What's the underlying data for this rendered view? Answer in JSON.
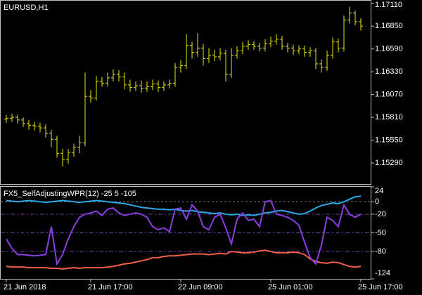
{
  "chart_data": [
    {
      "type": "ohlc",
      "title": "EURUSD,H1",
      "color": "#e8e800",
      "ylim": [
        1.1505,
        1.1714
      ],
      "yticks": [
        {
          "value": 1.1529,
          "label": "1.15290"
        },
        {
          "value": 1.1555,
          "label": "1.15550"
        },
        {
          "value": 1.1581,
          "label": "1.15810"
        },
        {
          "value": 1.1607,
          "label": "1.16070"
        },
        {
          "value": 1.1633,
          "label": "1.16330"
        },
        {
          "value": 1.1659,
          "label": "1.16590"
        },
        {
          "value": 1.1685,
          "label": "1.16850"
        },
        {
          "value": 1.1711,
          "label": "1.17110"
        }
      ],
      "open": [
        1.1579,
        1.158,
        1.1581,
        1.1578,
        1.1574,
        1.1572,
        1.1571,
        1.1569,
        1.1563,
        1.1556,
        1.154,
        1.1533,
        1.1541,
        1.1547,
        1.1552,
        1.1605,
        1.1603,
        1.1622,
        1.162,
        1.1626,
        1.163,
        1.1627,
        1.1618,
        1.1615,
        1.1617,
        1.1614,
        1.1616,
        1.1619,
        1.1615,
        1.1618,
        1.162,
        1.1638,
        1.164,
        1.1663,
        1.1655,
        1.166,
        1.1648,
        1.1652,
        1.165,
        1.1654,
        1.163,
        1.1652,
        1.1657,
        1.1662,
        1.1664,
        1.1662,
        1.166,
        1.1665,
        1.1668,
        1.167,
        1.1662,
        1.166,
        1.1657,
        1.1659,
        1.1655,
        1.1657,
        1.1642,
        1.1638,
        1.1652,
        1.1667,
        1.166,
        1.1692,
        1.17,
        1.169
      ],
      "high": [
        1.1584,
        1.1585,
        1.1584,
        1.1581,
        1.1578,
        1.1576,
        1.1575,
        1.1573,
        1.1567,
        1.156,
        1.1545,
        1.1545,
        1.1551,
        1.156,
        1.1632,
        1.1612,
        1.1628,
        1.1627,
        1.1632,
        1.1636,
        1.1635,
        1.1632,
        1.1624,
        1.1622,
        1.1623,
        1.1622,
        1.1624,
        1.1623,
        1.1622,
        1.1624,
        1.1643,
        1.1646,
        1.1676,
        1.1667,
        1.1677,
        1.1665,
        1.166,
        1.1658,
        1.166,
        1.1658,
        1.166,
        1.1662,
        1.1667,
        1.1669,
        1.1668,
        1.1666,
        1.167,
        1.1673,
        1.1676,
        1.1674,
        1.1666,
        1.1664,
        1.1663,
        1.1663,
        1.1661,
        1.166,
        1.1647,
        1.1657,
        1.1672,
        1.1671,
        1.1697,
        1.1707,
        1.1703,
        1.1694
      ],
      "low": [
        1.1575,
        1.1576,
        1.1574,
        1.157,
        1.1567,
        1.1566,
        1.1564,
        1.1558,
        1.1547,
        1.1535,
        1.1525,
        1.1528,
        1.1536,
        1.154,
        1.1548,
        1.1598,
        1.16,
        1.1616,
        1.1616,
        1.1622,
        1.1622,
        1.1613,
        1.161,
        1.1611,
        1.1609,
        1.161,
        1.1612,
        1.161,
        1.1611,
        1.1614,
        1.1616,
        1.1632,
        1.1636,
        1.1648,
        1.165,
        1.164,
        1.1643,
        1.1645,
        1.1646,
        1.1622,
        1.1626,
        1.1648,
        1.1653,
        1.1658,
        1.1658,
        1.1656,
        1.1656,
        1.1661,
        1.1664,
        1.1658,
        1.1655,
        1.1652,
        1.1653,
        1.165,
        1.165,
        1.1636,
        1.1632,
        1.1634,
        1.1648,
        1.1655,
        1.1656,
        1.1688,
        1.1686,
        1.168
      ],
      "close": [
        1.158,
        1.1581,
        1.1578,
        1.1574,
        1.1572,
        1.1571,
        1.1569,
        1.1563,
        1.1556,
        1.154,
        1.1533,
        1.1541,
        1.1547,
        1.1552,
        1.1605,
        1.1603,
        1.1622,
        1.162,
        1.1626,
        1.163,
        1.1627,
        1.1618,
        1.1615,
        1.1617,
        1.1614,
        1.1616,
        1.1619,
        1.1615,
        1.1618,
        1.162,
        1.1638,
        1.164,
        1.1663,
        1.1655,
        1.166,
        1.1648,
        1.1652,
        1.165,
        1.1654,
        1.163,
        1.1652,
        1.1657,
        1.1662,
        1.1664,
        1.1662,
        1.166,
        1.1665,
        1.1668,
        1.167,
        1.1662,
        1.166,
        1.1657,
        1.1659,
        1.1655,
        1.1657,
        1.1642,
        1.1638,
        1.1652,
        1.1667,
        1.166,
        1.1692,
        1.17,
        1.169,
        1.1685
      ]
    },
    {
      "type": "line",
      "title": "FX5_SelfAdjustingWPR(12) -25 5 -105",
      "categories": [
        "21 Jun 2018",
        null,
        null,
        null,
        null,
        null,
        null,
        null,
        null,
        null,
        null,
        null,
        null,
        null,
        null,
        "21 Jun 17:00",
        null,
        null,
        null,
        null,
        null,
        null,
        null,
        null,
        null,
        null,
        null,
        null,
        null,
        null,
        null,
        "22 Jun 09:00",
        null,
        null,
        null,
        null,
        null,
        null,
        null,
        null,
        null,
        null,
        null,
        null,
        null,
        null,
        null,
        "25 Jun 01:00",
        null,
        null,
        null,
        null,
        null,
        null,
        null,
        null,
        null,
        null,
        null,
        null,
        null,
        null,
        null,
        "25 Jun 17:00"
      ],
      "ylim": [
        -124,
        24
      ],
      "yticks": [
        24,
        0,
        -20,
        -50,
        -80,
        -124
      ],
      "levels": [
        {
          "value": 0,
          "color": "#808080"
        },
        {
          "value": -20,
          "color": "#6a3fb0"
        },
        {
          "value": -50,
          "color": "#6a3fb0"
        },
        {
          "value": -80,
          "color": "#6a3fb0"
        }
      ],
      "series": [
        {
          "color": "#27a9ea",
          "values": [
            2,
            1,
            0,
            1,
            2,
            1,
            0,
            -1,
            0,
            1,
            2,
            1,
            0,
            -1,
            0,
            1,
            2,
            1,
            0,
            -1,
            -2,
            -3,
            -5,
            -7,
            -9,
            -10,
            -11,
            -12,
            -12,
            -13,
            -12,
            -14,
            -15,
            -14,
            -16,
            -17,
            -18,
            -19,
            -18,
            -20,
            -21,
            -20,
            -22,
            -21,
            -22,
            -20,
            -18,
            -17,
            -15,
            -14,
            -16,
            -18,
            -20,
            -19,
            -15,
            -10,
            -6,
            -4,
            -2,
            -3,
            0,
            4,
            8,
            9
          ]
        },
        {
          "color": "#f0604a",
          "values": [
            -104,
            -105,
            -105,
            -105,
            -106,
            -106,
            -106,
            -106,
            -107,
            -107,
            -108,
            -107,
            -106,
            -107,
            -106,
            -106,
            -106,
            -106,
            -105,
            -104,
            -102,
            -100,
            -99,
            -97,
            -95,
            -93,
            -90,
            -90,
            -88,
            -87,
            -87,
            -86,
            -85,
            -84,
            -84,
            -84,
            -85,
            -84,
            -83,
            -84,
            -80,
            -81,
            -82,
            -82,
            -81,
            -79,
            -78,
            -80,
            -82,
            -82,
            -82,
            -81,
            -82,
            -85,
            -92,
            -96,
            -98,
            -99,
            -97,
            -98,
            -101,
            -104,
            -105,
            -104
          ]
        },
        {
          "color": "#8a3ee0",
          "values": [
            -60,
            -75,
            -85,
            -85,
            -86,
            -87,
            -86,
            -85,
            -40,
            -100,
            -85,
            -60,
            -40,
            -25,
            -20,
            -18,
            -15,
            -22,
            -12,
            -10,
            -18,
            -22,
            -20,
            -18,
            -20,
            -25,
            -40,
            -45,
            -42,
            -48,
            -12,
            -10,
            -28,
            -5,
            -15,
            -40,
            -45,
            -25,
            -20,
            -42,
            -68,
            -28,
            -18,
            -30,
            -28,
            -40,
            0,
            2,
            -20,
            -22,
            -25,
            -30,
            -38,
            -65,
            -90,
            -100,
            -70,
            -25,
            -30,
            -40,
            -5,
            -20,
            -25,
            -20
          ]
        }
      ]
    }
  ]
}
